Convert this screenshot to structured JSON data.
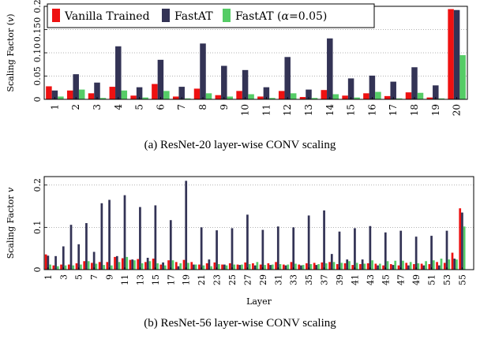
{
  "colors": {
    "vanilla": "#ee1111",
    "fastat": "#333355",
    "fastat005": "#55cc66"
  },
  "legend": {
    "vanilla": "Vanilla Trained",
    "fastat": "FastAT",
    "fastat005_prefix": "FastAT (",
    "fastat005_alpha": "α",
    "fastat005_suffix": "=0.05)"
  },
  "captions": {
    "a": "(a) ResNet-20 layer-wise CONV scaling",
    "b": "(b) ResNet-56 layer-wise CONV scaling"
  },
  "chart_data": [
    {
      "type": "bar",
      "title": "",
      "ylabel_prefix": "Scaling Factor (",
      "ylabel_var": "v",
      "ylabel_suffix": ")",
      "xlabel": "",
      "ylim": [
        0,
        0.2
      ],
      "yticks": [
        0,
        0.05,
        0.1,
        0.15,
        0.2
      ],
      "ytick_labels": [
        "0",
        "0.05",
        "0.10",
        "0.150",
        "0.2"
      ],
      "grid": true,
      "legend_position": "top-left",
      "categories": [
        "1",
        "2",
        "3",
        "4",
        "5",
        "6",
        "7",
        "8",
        "9",
        "10",
        "11",
        "12",
        "13",
        "14",
        "15",
        "16",
        "17",
        "18",
        "19",
        "20"
      ],
      "series": [
        {
          "name": "Vanilla Trained",
          "values": [
            0.028,
            0.019,
            0.013,
            0.027,
            0.008,
            0.033,
            0.006,
            0.023,
            0.009,
            0.018,
            0.006,
            0.018,
            0.005,
            0.02,
            0.008,
            0.013,
            0.007,
            0.015,
            0.004,
            0.194
          ]
        },
        {
          "name": "FastAT",
          "values": [
            0.019,
            0.054,
            0.036,
            0.114,
            0.026,
            0.085,
            0.027,
            0.12,
            0.072,
            0.063,
            0.026,
            0.091,
            0.021,
            0.131,
            0.045,
            0.051,
            0.038,
            0.069,
            0.03,
            0.192
          ]
        },
        {
          "name": "FastAT (α=0.05)",
          "values": [
            0.006,
            0.021,
            0.003,
            0.019,
            0.004,
            0.018,
            0.002,
            0.013,
            0.006,
            0.011,
            0.003,
            0.013,
            0.003,
            0.011,
            0.004,
            0.016,
            0.002,
            0.014,
            0.002,
            0.095
          ]
        }
      ]
    },
    {
      "type": "bar",
      "title": "",
      "ylabel_prefix": "Scaling Factor ",
      "ylabel_var": "v",
      "ylabel_suffix": "",
      "xlabel": "Layer",
      "ylim": [
        0,
        0.22
      ],
      "yticks": [
        0,
        0.1,
        0.2
      ],
      "ytick_labels": [
        "0",
        "0.1",
        "0.2"
      ],
      "grid": true,
      "categories": [
        "1",
        "2",
        "3",
        "4",
        "5",
        "6",
        "7",
        "8",
        "9",
        "10",
        "11",
        "12",
        "13",
        "14",
        "15",
        "16",
        "17",
        "18",
        "19",
        "20",
        "21",
        "22",
        "23",
        "24",
        "25",
        "26",
        "27",
        "28",
        "29",
        "30",
        "31",
        "32",
        "33",
        "34",
        "35",
        "36",
        "37",
        "38",
        "39",
        "40",
        "41",
        "42",
        "43",
        "44",
        "45",
        "46",
        "47",
        "48",
        "49",
        "50",
        "51",
        "52",
        "53",
        "54",
        "55",
        "56"
      ],
      "xtick_labels": [
        "1",
        "3",
        "5",
        "7",
        "9",
        "11",
        "13",
        "15",
        "17",
        "19",
        "21",
        "23",
        "25",
        "27",
        "29",
        "31",
        "33",
        "35",
        "37",
        "39",
        "41",
        "43",
        "45",
        "47",
        "49",
        "51",
        "53",
        "55"
      ],
      "series": [
        {
          "name": "Vanilla Trained",
          "values": [
            0.036,
            0.01,
            0.012,
            0.012,
            0.015,
            0.02,
            0.016,
            0.018,
            0.018,
            0.03,
            0.027,
            0.023,
            0.025,
            0.018,
            0.026,
            0.012,
            0.022,
            0.018,
            0.023,
            0.018,
            0.012,
            0.015,
            0.017,
            0.012,
            0.015,
            0.012,
            0.017,
            0.015,
            0.012,
            0.015,
            0.018,
            0.012,
            0.018,
            0.012,
            0.015,
            0.016,
            0.017,
            0.018,
            0.013,
            0.015,
            0.011,
            0.013,
            0.015,
            0.014,
            0.01,
            0.013,
            0.01,
            0.016,
            0.013,
            0.014,
            0.013,
            0.018,
            0.016,
            0.04,
            0.145,
            0.0
          ]
        },
        {
          "name": "FastAT",
          "values": [
            0.033,
            0.032,
            0.055,
            0.106,
            0.06,
            0.11,
            0.042,
            0.157,
            0.165,
            0.032,
            0.176,
            0.024,
            0.148,
            0.028,
            0.152,
            0.017,
            0.117,
            0.008,
            0.21,
            0.012,
            0.1,
            0.024,
            0.093,
            0.012,
            0.098,
            0.011,
            0.13,
            0.01,
            0.094,
            0.011,
            0.102,
            0.01,
            0.1,
            0.01,
            0.128,
            0.011,
            0.14,
            0.037,
            0.09,
            0.024,
            0.098,
            0.024,
            0.103,
            0.01,
            0.088,
            0.011,
            0.092,
            0.01,
            0.078,
            0.01,
            0.08,
            0.01,
            0.092,
            0.026,
            0.135,
            0.0
          ]
        },
        {
          "name": "FastAT (α=0.05)",
          "values": [
            0.012,
            0.008,
            0.01,
            0.01,
            0.012,
            0.02,
            0.014,
            0.011,
            0.01,
            0.018,
            0.03,
            0.022,
            0.015,
            0.02,
            0.015,
            0.01,
            0.022,
            0.015,
            0.016,
            0.012,
            0.01,
            0.008,
            0.013,
            0.01,
            0.012,
            0.012,
            0.013,
            0.018,
            0.011,
            0.012,
            0.013,
            0.012,
            0.014,
            0.011,
            0.013,
            0.013,
            0.015,
            0.018,
            0.016,
            0.02,
            0.016,
            0.014,
            0.022,
            0.014,
            0.02,
            0.021,
            0.021,
            0.018,
            0.015,
            0.02,
            0.022,
            0.026,
            0.024,
            0.024,
            0.102,
            0.0
          ]
        }
      ]
    }
  ]
}
